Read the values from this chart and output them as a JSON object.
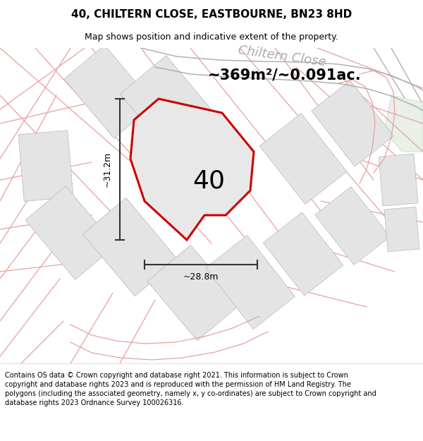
{
  "title_line1": "40, CHILTERN CLOSE, EASTBOURNE, BN23 8HD",
  "title_line2": "Map shows position and indicative extent of the property.",
  "footer_text": "Contains OS data © Crown copyright and database right 2021. This information is subject to Crown copyright and database rights 2023 and is reproduced with the permission of HM Land Registry. The polygons (including the associated geometry, namely x, y co-ordinates) are subject to Crown copyright and database rights 2023 Ordnance Survey 100026316.",
  "area_label": "~369m²/~0.091ac.",
  "plot_number": "40",
  "dim_horizontal": "~28.8m",
  "dim_vertical": "~31.2m",
  "road_label": "Chiltern Close",
  "bg_color": "#ffffff",
  "plot_fill": "#e8e8e8",
  "main_plot_fill": "#e8e8e8",
  "plot_edge_color": "#e8a0a0",
  "plot_lw": 1.0,
  "main_edge_color": "#cc0000",
  "main_lw": 2.2,
  "road_label_color": "#aaaaaa",
  "road_line_color": "#aaaaaa",
  "dim_line_color": "#333333",
  "title_fontsize": 11,
  "subtitle_fontsize": 9,
  "footer_fontsize": 7.0,
  "area_fontsize": 15,
  "plot_label_fontsize": 26,
  "dim_fontsize": 9,
  "road_label_fontsize": 13
}
